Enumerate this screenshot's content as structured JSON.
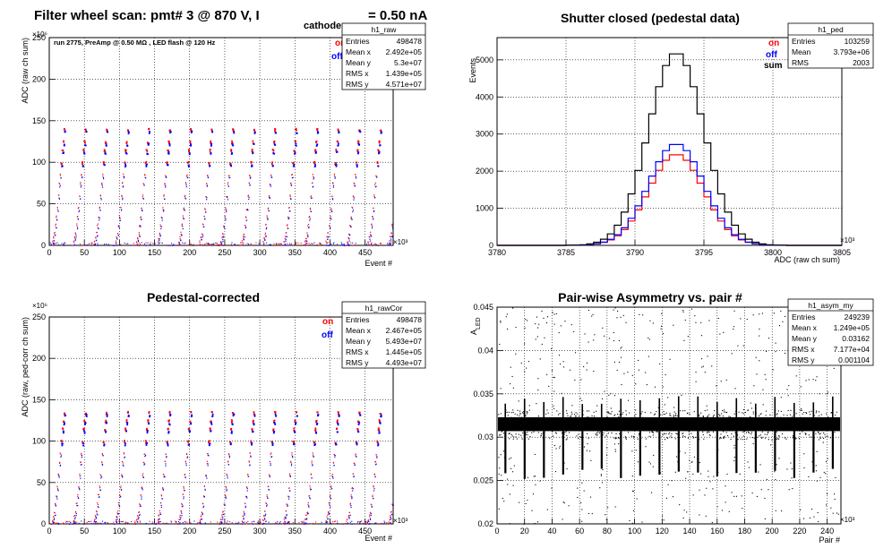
{
  "page_title": {
    "main": "Filter wheel scan: pmt#   3 @   870 V, I",
    "sub": "cathode",
    "tail": "= 0.50 nA"
  },
  "chart_data": [
    {
      "id": "raw",
      "type": "scatter",
      "title": "",
      "annotation": "run 2775, PreAmp @ 0.50 MΩ , LED flash @  120 Hz",
      "xlabel": "Event #",
      "ylabel": "ADC (raw ch sum)",
      "x_exponent": "×10³",
      "y_exponent": "×10⁶",
      "xlim": [
        0,
        490
      ],
      "ylim": [
        0,
        250
      ],
      "xticks": [
        0,
        50,
        100,
        150,
        200,
        250,
        300,
        350,
        400,
        450
      ],
      "yticks": [
        0,
        50,
        100,
        150,
        200,
        250
      ],
      "grid": true,
      "legend": [
        "on",
        "off"
      ],
      "colors": {
        "on": "#ff0000",
        "off": "#0000ff"
      },
      "stats": {
        "name": "h1_raw",
        "rows": [
          [
            "Entries",
            "498478"
          ],
          [
            "Mean x",
            "2.492e+05"
          ],
          [
            "Mean y",
            "5.3e+07"
          ],
          [
            "RMS x",
            "1.439e+05"
          ],
          [
            "RMS y",
            "4.571e+07"
          ]
        ]
      },
      "levels": [
        0,
        5,
        10,
        15,
        25,
        35,
        45,
        60,
        75,
        85,
        100,
        115,
        125,
        140
      ],
      "cycle_period": 30
    },
    {
      "id": "ped",
      "type": "line",
      "title": "Shutter closed (pedestal data)",
      "xlabel": "ADC (raw ch sum)",
      "ylabel": "Events",
      "x_exponent": "×10³",
      "xlim": [
        3780,
        3805
      ],
      "ylim": [
        0,
        5600
      ],
      "xticks": [
        3780,
        3785,
        3790,
        3795,
        3800,
        3805
      ],
      "yticks": [
        0,
        1000,
        2000,
        3000,
        4000,
        5000
      ],
      "grid": true,
      "legend": [
        "on",
        "off",
        "sum"
      ],
      "colors": {
        "on": "#ff0000",
        "off": "#0000ff",
        "sum": "#000000"
      },
      "stats": {
        "name": "h1_ped",
        "rows": [
          [
            "Entries",
            "103259"
          ],
          [
            "Mean",
            "3.793e+06"
          ],
          [
            "RMS",
            "2003"
          ]
        ]
      },
      "series": [
        {
          "name": "on",
          "peak": 2460,
          "mean": 3793.0,
          "sigma": 2.0
        },
        {
          "name": "off",
          "peak": 2740,
          "mean": 3793.0,
          "sigma": 2.0
        },
        {
          "name": "sum",
          "peak": 5200,
          "mean": 3793.0,
          "sigma": 2.0
        }
      ]
    },
    {
      "id": "rawCor",
      "type": "scatter",
      "title": "Pedestal-corrected",
      "xlabel": "Event #",
      "ylabel": "ADC (raw, ped-corr ch sum)",
      "x_exponent": "×10³",
      "y_exponent": "×10⁶",
      "xlim": [
        0,
        490
      ],
      "ylim": [
        0,
        250
      ],
      "xticks": [
        0,
        50,
        100,
        150,
        200,
        250,
        300,
        350,
        400,
        450
      ],
      "yticks": [
        0,
        50,
        100,
        150,
        200,
        250
      ],
      "grid": true,
      "legend": [
        "on",
        "off"
      ],
      "colors": {
        "on": "#ff0000",
        "off": "#0000ff"
      },
      "stats": {
        "name": "h1_rawCor",
        "rows": [
          [
            "Entries",
            "498478"
          ],
          [
            "Mean x",
            "2.467e+05"
          ],
          [
            "Mean y",
            "5.493e+07"
          ],
          [
            "RMS x",
            "1.445e+05"
          ],
          [
            "RMS y",
            "4.493e+07"
          ]
        ]
      },
      "levels": [
        0,
        5,
        10,
        15,
        25,
        35,
        45,
        60,
        75,
        85,
        100,
        115,
        125,
        135
      ],
      "cycle_period": 30
    },
    {
      "id": "asym",
      "type": "scatter",
      "title": "Pair-wise Asymmetry vs. pair #",
      "xlabel": "Pair #",
      "ylabel": "A",
      "ylabel_sub": "LED",
      "x_exponent": "×10³",
      "xlim": [
        0,
        250
      ],
      "ylim": [
        0.02,
        0.045
      ],
      "xticks": [
        0,
        20,
        40,
        60,
        80,
        100,
        120,
        140,
        160,
        180,
        200,
        220,
        240
      ],
      "yticks": [
        0.02,
        0.025,
        0.03,
        0.035,
        0.04,
        0.045
      ],
      "grid": true,
      "colors": {
        "points": "#000000"
      },
      "stats": {
        "name": "h1_asym_my",
        "rows": [
          [
            "Entries",
            "249239"
          ],
          [
            "Mean x",
            "1.249e+05"
          ],
          [
            "Mean y",
            "0.03162"
          ],
          [
            "RMS x",
            "7.177e+04"
          ],
          [
            "RMS y",
            "0.001104"
          ]
        ]
      },
      "band_center": 0.0315,
      "band_halfwidth": 0.0008,
      "spike_period": 14,
      "spike_low": 0.025
    }
  ]
}
